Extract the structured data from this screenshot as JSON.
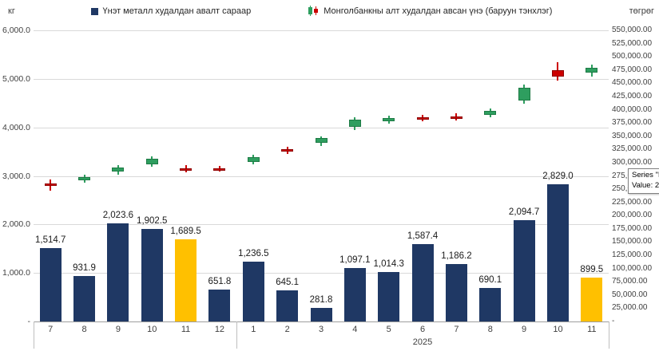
{
  "units": {
    "left": "кг",
    "right": "төгрөг"
  },
  "legend": [
    {
      "label": "Үнэт металл худалдан авалт сараар",
      "type": "bar",
      "color": "#1f3864"
    },
    {
      "label": "Монголбанкны алт худалдан авсан үнэ (баруун тэнхлэг)",
      "type": "candlestick"
    }
  ],
  "tooltip": {
    "line1": "Series \"Н",
    "line2": "Value: 2"
  },
  "colors": {
    "navy": "#1f3864",
    "gold": "#ffc000",
    "candle_up": "#2e9e5f",
    "candle_up_border": "#1e7a45",
    "candle_down": "#cc0000",
    "candle_down_border": "#8e0000",
    "gridline": "#d9d9d9"
  },
  "chart_data": {
    "type": "combo",
    "subtypes": [
      "bar",
      "candlestick"
    ],
    "categories": [
      "7",
      "8",
      "9",
      "10",
      "11",
      "12",
      "1",
      "2",
      "3",
      "4",
      "5",
      "6",
      "7",
      "8",
      "9",
      "10",
      "11"
    ],
    "year_groups": [
      {
        "label": "",
        "span": 6
      },
      {
        "label": "2025",
        "span": 11
      }
    ],
    "left_axis": {
      "title": "кг",
      "min": 0,
      "max": 6000,
      "step": 1000,
      "tick_labels": [
        "6,000.0",
        "5,000.0",
        "4,000.0",
        "3,000.0",
        "2,000.0",
        "1,000.0",
        "-"
      ]
    },
    "right_axis": {
      "title": "төгрөг",
      "min": 0,
      "max": 550000,
      "step": 25000,
      "tick_labels": [
        "550,000.00",
        "525,000.00",
        "500,000.00",
        "475,000.00",
        "450,000.00",
        "425,000.00",
        "400,000.00",
        "375,000.00",
        "350,000.00",
        "325,000.00",
        "300,000.00",
        "275,000.00",
        "250,000.00",
        "225,000.00",
        "200,000.00",
        "175,000.00",
        "150,000.00",
        "125,000.00",
        "100,000.00",
        "75,000.00",
        "50,000.00",
        "25,000.00",
        "-"
      ]
    },
    "series": [
      {
        "name": "Үнэт металл худалдан авалт сараар",
        "type": "bar",
        "axis": "left",
        "values": [
          1514.7,
          931.9,
          2023.6,
          1902.5,
          1689.5,
          651.8,
          1236.5,
          645.1,
          281.8,
          1097.1,
          1014.3,
          1587.4,
          1186.2,
          690.1,
          2094.7,
          2829.0,
          899.5
        ],
        "labels": [
          "1,514.7",
          "931.9",
          "2,023.6",
          "1,902.5",
          "1,689.5",
          "651.8",
          "1,236.5",
          "645.1",
          "281.8",
          "1,097.1",
          "1,014.3",
          "1,587.4",
          "1,186.2",
          "690.1",
          "2,094.7",
          "2,829.0",
          "899.5"
        ],
        "bar_colors": [
          "navy",
          "navy",
          "navy",
          "navy",
          "gold",
          "navy",
          "navy",
          "navy",
          "navy",
          "navy",
          "navy",
          "navy",
          "navy",
          "navy",
          "navy",
          "navy",
          "gold"
        ]
      },
      {
        "name": "Монголбанкны алт худалдан авсан үнэ (баруун тэнхлэг)",
        "type": "candlestick",
        "axis": "right",
        "candles": [
          {
            "open": 261000,
            "high": 268000,
            "low": 247500,
            "close": 256500
          },
          {
            "open": 266000,
            "high": 277500,
            "low": 261500,
            "close": 273000
          },
          {
            "open": 283000,
            "high": 296000,
            "low": 278000,
            "close": 291500
          },
          {
            "open": 297000,
            "high": 312000,
            "low": 292000,
            "close": 308000
          },
          {
            "open": 290000,
            "high": 295500,
            "low": 282500,
            "close": 286500
          },
          {
            "open": 290000,
            "high": 294500,
            "low": 283500,
            "close": 287000
          },
          {
            "open": 302000,
            "high": 315000,
            "low": 297500,
            "close": 311000
          },
          {
            "open": 325000,
            "high": 330000,
            "low": 317000,
            "close": 321500
          },
          {
            "open": 337000,
            "high": 350000,
            "low": 332000,
            "close": 346000
          },
          {
            "open": 367000,
            "high": 386500,
            "low": 362000,
            "close": 381500
          },
          {
            "open": 378500,
            "high": 389500,
            "low": 374000,
            "close": 385000
          },
          {
            "open": 386000,
            "high": 391000,
            "low": 377500,
            "close": 382000
          },
          {
            "open": 388000,
            "high": 393000,
            "low": 379500,
            "close": 384000
          },
          {
            "open": 390500,
            "high": 402000,
            "low": 386000,
            "close": 397500
          },
          {
            "open": 417000,
            "high": 447000,
            "low": 412000,
            "close": 441000
          },
          {
            "open": 474000,
            "high": 489000,
            "low": 455000,
            "close": 462000
          },
          {
            "open": 470000,
            "high": 485500,
            "low": 463000,
            "close": 479000
          }
        ]
      }
    ]
  }
}
